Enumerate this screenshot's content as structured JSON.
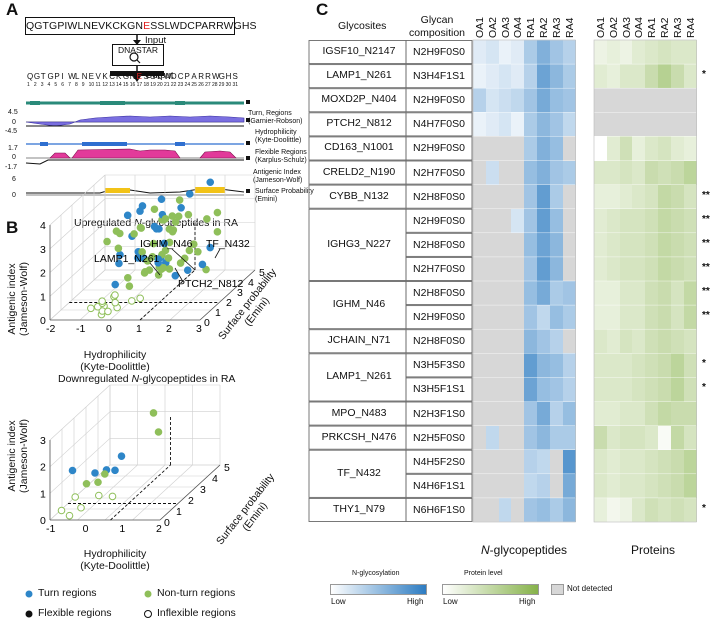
{
  "panel_a": {
    "label": "A",
    "sequence": "QGTGPIWLNEVKCKGNESSLWDCPARRWGHS",
    "input_label": "Input",
    "tool_label": "DNASTAR",
    "output_label": "Output",
    "residues": [
      "Q",
      "G",
      "T",
      "G",
      "P",
      "I",
      "W",
      "L",
      "N",
      "E",
      "V",
      "K",
      "C",
      "K",
      "G",
      "N",
      "E",
      "S",
      "S",
      "L",
      "W",
      "D",
      "C",
      "P",
      "A",
      "R",
      "R",
      "W",
      "G",
      "H",
      "S"
    ],
    "highlight_index": 16,
    "highlight_color": "#e02020",
    "tracks": [
      {
        "name": "Turn, Regions (Garnier-Robson)",
        "axis": []
      },
      {
        "name": "Hydrophilicity (Kyte-Doolittle)",
        "axis": [
          "4.5",
          "0",
          "-4.5"
        ]
      },
      {
        "name": "Flexible Regions (Karplus-Schulz)",
        "axis": []
      },
      {
        "name": "Antigenic Index (Jameson-Wolf)",
        "axis": [
          "1.7",
          "0",
          "-1.7"
        ]
      },
      {
        "name": "Surface Probability (Emini)",
        "axis": [
          "6",
          "0"
        ]
      }
    ]
  },
  "panel_b": {
    "label": "B",
    "plots": [
      {
        "title_prefix": "Upregulated ",
        "title_italic": "N",
        "title_suffix": "-glycopeptides in RA",
        "y_label_1": "Antigenic index",
        "y_label_2": "(Jameson-Wolf)",
        "x_label_1": "Hydrophilicity",
        "x_label_2": "(Kyte-Doolittle)",
        "z_label_1": "Surface probability",
        "z_label_2": "(Emini)",
        "y_ticks": [
          "0",
          "1",
          "2",
          "3",
          "4"
        ],
        "x_ticks": [
          "-2",
          "-1",
          "0",
          "1",
          "2",
          "3"
        ],
        "z_ticks": [
          "0",
          "1",
          "2",
          "3",
          "4",
          "5"
        ],
        "annotations": [
          "IGHM_N46",
          "TF_N432",
          "LAMP1_N261",
          "PTCH2_N812"
        ]
      },
      {
        "title_prefix": "Downregulated ",
        "title_italic": "N",
        "title_suffix": "-glycopeptides in RA",
        "y_label_1": "Antigenic index",
        "y_label_2": "(Jameson-Wolf)",
        "x_label_1": "Hydrophilicity",
        "x_label_2": "(Kyte-Doolittle)",
        "z_label_1": "Surface probability",
        "z_label_2": "(Emini)",
        "y_ticks": [
          "0",
          "1",
          "2",
          "3"
        ],
        "x_ticks": [
          "-1",
          "0",
          "1",
          "2"
        ],
        "z_ticks": [
          "0",
          "1",
          "2",
          "3",
          "4",
          "5"
        ],
        "annotations": []
      }
    ],
    "legend": [
      {
        "label": "Turn regions",
        "color": "#2e86c8",
        "style": "filled"
      },
      {
        "label": "Non-turn regions",
        "color": "#8fbf5a",
        "style": "filled"
      },
      {
        "label": "Flexible regions",
        "color": "#111111",
        "style": "filled"
      },
      {
        "label": "Inflexible regions",
        "color": "#111111",
        "style": "open"
      }
    ],
    "colors": {
      "turn": "#2e86c8",
      "nonturn": "#8fbf5a"
    }
  },
  "panel_c": {
    "label": "C",
    "header_glycosites": "Glycosites",
    "header_composition_1": "Glycan",
    "header_composition_2": "composition",
    "glyco_columns": [
      "OA1",
      "OA2",
      "OA3",
      "OA4",
      "RA1",
      "RA2",
      "RA3",
      "RA4"
    ],
    "protein_columns": [
      "OA1",
      "OA2",
      "OA3",
      "OA4",
      "RA1",
      "RA2",
      "RA3",
      "RA4"
    ],
    "glycosites": [
      {
        "name": "IGSF10_N2147",
        "rows": 1
      },
      {
        "name": "LAMP1_N261",
        "rows": 1
      },
      {
        "name": "MOXD2P_N404",
        "rows": 1
      },
      {
        "name": "PTCH2_N812",
        "rows": 1
      },
      {
        "name": "CD163_N1001",
        "rows": 1
      },
      {
        "name": "CRELD2_N190",
        "rows": 1
      },
      {
        "name": "CYBB_N132",
        "rows": 1
      },
      {
        "name": "IGHG3_N227",
        "rows": 3
      },
      {
        "name": "IGHM_N46",
        "rows": 2
      },
      {
        "name": "JCHAIN_N71",
        "rows": 1
      },
      {
        "name": "LAMP1_N261",
        "rows": 2
      },
      {
        "name": "MPO_N483",
        "rows": 1
      },
      {
        "name": "PRKCSH_N476",
        "rows": 1
      },
      {
        "name": "TF_N432",
        "rows": 2
      },
      {
        "name": "THY1_N79",
        "rows": 1
      }
    ],
    "compositions": [
      "N2H9F0S0",
      "N3H4F1S1",
      "N2H9F0S0",
      "N4H7F0S0",
      "N2H9F0S0",
      "N2H7F0S0",
      "N2H8F0S0",
      "N2H9F0S0",
      "N2H8F0S0",
      "N2H7F0S0",
      "N2H8F0S0",
      "N2H9F0S0",
      "N2H8F0S0",
      "N3H5F3S0",
      "N3H5F1S1",
      "N2H3F1S0",
      "N2H5F0S0",
      "N4H5F2S0",
      "N4H6F1S1",
      "N6H6F1S0"
    ],
    "significance": [
      "",
      "*",
      "",
      "",
      "",
      "",
      "**",
      "**",
      "**",
      "**",
      "**",
      "**",
      "",
      "*",
      "*",
      "",
      "",
      "",
      "",
      "*"
    ],
    "glyco_values": [
      [
        0.15,
        0.2,
        0.1,
        0.15,
        0.4,
        0.6,
        0.45,
        0.35
      ],
      [
        0.1,
        0.15,
        0.2,
        0.15,
        0.35,
        0.7,
        0.55,
        0.4
      ],
      [
        0.35,
        0.2,
        0.25,
        0.3,
        0.45,
        0.65,
        0.5,
        0.45
      ],
      [
        0.1,
        0.15,
        0.2,
        0.1,
        0.4,
        0.55,
        0.45,
        0.3
      ],
      [
        null,
        null,
        null,
        null,
        0.4,
        0.6,
        0.5,
        null
      ],
      [
        null,
        0.25,
        null,
        null,
        0.5,
        0.6,
        0.45,
        0.4
      ],
      [
        null,
        null,
        null,
        null,
        0.45,
        0.75,
        0.4,
        null
      ],
      [
        null,
        null,
        null,
        0.2,
        0.45,
        0.75,
        0.5,
        null
      ],
      [
        null,
        null,
        null,
        null,
        0.5,
        0.7,
        0.55,
        null
      ],
      [
        null,
        null,
        null,
        null,
        0.45,
        0.75,
        0.55,
        null
      ],
      [
        null,
        null,
        null,
        null,
        0.5,
        0.65,
        0.4,
        0.45
      ],
      [
        null,
        null,
        null,
        null,
        0.45,
        0.3,
        0.5,
        0.4
      ],
      [
        null,
        null,
        null,
        null,
        0.55,
        0.45,
        0.35,
        null
      ],
      [
        null,
        null,
        null,
        null,
        0.75,
        0.55,
        0.5,
        0.35
      ],
      [
        null,
        null,
        null,
        null,
        0.7,
        0.5,
        0.45,
        0.35
      ],
      [
        null,
        null,
        null,
        null,
        0.45,
        0.65,
        0.35,
        0.5
      ],
      [
        null,
        0.3,
        null,
        null,
        0.45,
        0.55,
        0.4,
        0.4
      ],
      [
        null,
        null,
        null,
        null,
        0.35,
        0.3,
        null,
        0.8
      ],
      [
        null,
        null,
        null,
        null,
        0.3,
        0.35,
        null,
        0.65
      ],
      [
        null,
        null,
        0.3,
        null,
        0.45,
        0.5,
        0.4,
        0.55
      ]
    ],
    "protein_values": [
      [
        0.15,
        0.2,
        0.15,
        0.25,
        0.3,
        0.35,
        0.3,
        0.3
      ],
      [
        0.25,
        0.2,
        0.3,
        0.3,
        0.45,
        0.6,
        0.45,
        0.3
      ],
      [
        null,
        null,
        null,
        null,
        null,
        null,
        null,
        null
      ],
      [
        null,
        null,
        null,
        null,
        null,
        null,
        null,
        null
      ],
      [
        0.0,
        0.25,
        0.4,
        0.2,
        0.3,
        0.35,
        0.25,
        0.2
      ],
      [
        0.3,
        0.3,
        0.35,
        0.3,
        0.45,
        0.4,
        0.45,
        0.55
      ],
      [
        0.2,
        0.2,
        0.25,
        0.3,
        0.35,
        0.5,
        0.45,
        0.35
      ],
      [
        0.25,
        0.3,
        0.35,
        0.35,
        0.4,
        0.5,
        0.45,
        0.4
      ],
      [
        0.25,
        0.3,
        0.35,
        0.35,
        0.4,
        0.5,
        0.45,
        0.4
      ],
      [
        0.25,
        0.3,
        0.35,
        0.35,
        0.4,
        0.5,
        0.45,
        0.4
      ],
      [
        0.2,
        0.2,
        0.3,
        0.3,
        0.4,
        0.45,
        0.35,
        0.5
      ],
      [
        0.2,
        0.2,
        0.3,
        0.3,
        0.4,
        0.45,
        0.35,
        0.5
      ],
      [
        0.3,
        0.25,
        0.35,
        0.3,
        0.4,
        0.45,
        0.4,
        0.35
      ],
      [
        0.3,
        0.3,
        0.3,
        0.35,
        0.4,
        0.45,
        0.55,
        0.4
      ],
      [
        0.3,
        0.3,
        0.3,
        0.35,
        0.4,
        0.45,
        0.55,
        0.4
      ],
      [
        0.25,
        0.25,
        0.3,
        0.3,
        0.4,
        0.5,
        0.45,
        0.45
      ],
      [
        0.45,
        0.3,
        0.35,
        0.35,
        0.3,
        0.05,
        0.5,
        0.35
      ],
      [
        0.3,
        0.25,
        0.3,
        0.3,
        0.35,
        0.4,
        0.45,
        0.55
      ],
      [
        0.3,
        0.25,
        0.3,
        0.3,
        0.35,
        0.4,
        0.45,
        0.55
      ],
      [
        0.2,
        0.1,
        0.15,
        0.3,
        0.4,
        0.35,
        0.4,
        0.35
      ]
    ],
    "footer_glyco_italic": "N",
    "footer_glyco_rest": "-glycopeptides",
    "footer_protein": "Proteins",
    "legend_glyco_title": "N-glycosylation",
    "legend_protein_title": "Protein level",
    "legend_low": "Low",
    "legend_high": "High",
    "legend_not_detected": "Not detected",
    "colors": {
      "glyco_high": "#2d7cc2",
      "protein_high": "#86b24a",
      "not_detected": "#d7d7d7",
      "low": "#ffffff"
    }
  }
}
